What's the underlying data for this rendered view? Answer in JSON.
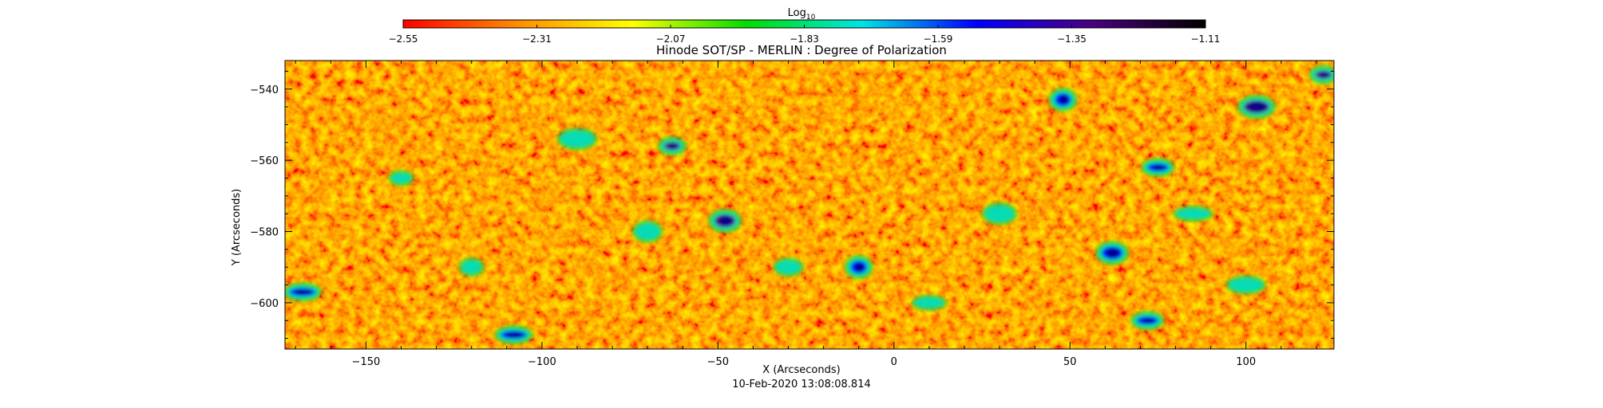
{
  "chart_data": {
    "type": "heatmap",
    "title": "Hinode SOT/SP - MERLIN : Degree of Polarization",
    "subtitle": "10-Feb-2020 13:08:08.814",
    "xlabel": "X (Arcseconds)",
    "ylabel": "Y (Arcseconds)",
    "xlim": [
      -173,
      125
    ],
    "ylim": [
      -613,
      -532
    ],
    "x_ticks": [
      -150,
      -100,
      -50,
      0,
      50,
      100
    ],
    "y_ticks": [
      -540,
      -560,
      -580,
      -600
    ],
    "x_tick_labels": [
      "−150",
      "−100",
      "−50",
      "0",
      "50",
      "100"
    ],
    "y_tick_labels": [
      "−540",
      "−560",
      "−580",
      "−600"
    ],
    "colorbar": {
      "label_base": "Log",
      "label_sub": "10",
      "range": [
        -2.55,
        -1.11
      ],
      "ticks": [
        -2.55,
        -2.31,
        -2.07,
        -1.83,
        -1.59,
        -1.35,
        -1.11
      ],
      "tick_labels": [
        "−2.55",
        "−2.31",
        "−2.07",
        "−1.83",
        "−1.59",
        "−1.35",
        "−1.11"
      ],
      "colors": [
        "#ff0000",
        "#ff8c00",
        "#ffff00",
        "#00dd00",
        "#00e5e5",
        "#0000ff",
        "#4b0082",
        "#000000"
      ]
    },
    "grid": false,
    "background_level": -2.31,
    "features": [
      {
        "x": -63,
        "y": -556,
        "value": -1.4
      },
      {
        "x": -48,
        "y": -577,
        "value": -1.38
      },
      {
        "x": -108,
        "y": -609,
        "value": -1.45
      },
      {
        "x": 48,
        "y": -543,
        "value": -1.45
      },
      {
        "x": 75,
        "y": -562,
        "value": -1.45
      },
      {
        "x": 103,
        "y": -545,
        "value": -1.4
      },
      {
        "x": 122,
        "y": -536,
        "value": -1.4
      },
      {
        "x": 62,
        "y": -586,
        "value": -1.5
      },
      {
        "x": -168,
        "y": -597,
        "value": -1.55
      },
      {
        "x": -10,
        "y": -590,
        "value": -1.55
      },
      {
        "x": 72,
        "y": -605,
        "value": -1.5
      },
      {
        "x": -90,
        "y": -554,
        "value": -1.75
      },
      {
        "x": -140,
        "y": -565,
        "value": -1.85
      },
      {
        "x": -30,
        "y": -590,
        "value": -1.8
      },
      {
        "x": 30,
        "y": -575,
        "value": -1.85
      },
      {
        "x": 85,
        "y": -575,
        "value": -1.85
      },
      {
        "x": -120,
        "y": -590,
        "value": -1.85
      },
      {
        "x": -70,
        "y": -580,
        "value": -1.85
      },
      {
        "x": 10,
        "y": -600,
        "value": -1.85
      },
      {
        "x": 100,
        "y": -595,
        "value": -1.85
      }
    ]
  }
}
